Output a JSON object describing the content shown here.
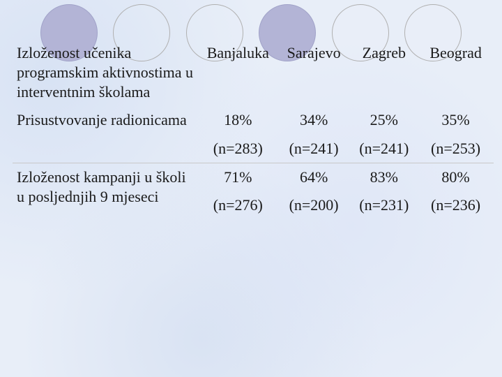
{
  "background_color": "#e8eef8",
  "circle_outline_color": "#b0b0b0",
  "circle_fill_color": "#b3b4d6",
  "text_color": "#1a1a1a",
  "font_family": "Times New Roman",
  "font_size_pt": 16,
  "table": {
    "header_rowlabel": "Izloženost učenika programskim aktivnostima u interventnim školama",
    "columns": [
      "Banjaluka",
      "Sarajevo",
      "Zagreb",
      "Beograd"
    ],
    "rows": [
      {
        "label": "Prisustvovanje radionicama",
        "values": [
          "18%",
          "34%",
          "25%",
          "35%"
        ],
        "ns": [
          "(n=283)",
          "(n=241)",
          "(n=241)",
          "(n=253)"
        ]
      },
      {
        "label": "Izloženost kampanji u školi u posljednjih 9 mjeseci",
        "values": [
          "71%",
          "64%",
          "83%",
          "80%"
        ],
        "ns": [
          "(n=276)",
          "(n=200)",
          "(n=231)",
          "(n=236)"
        ]
      }
    ]
  }
}
